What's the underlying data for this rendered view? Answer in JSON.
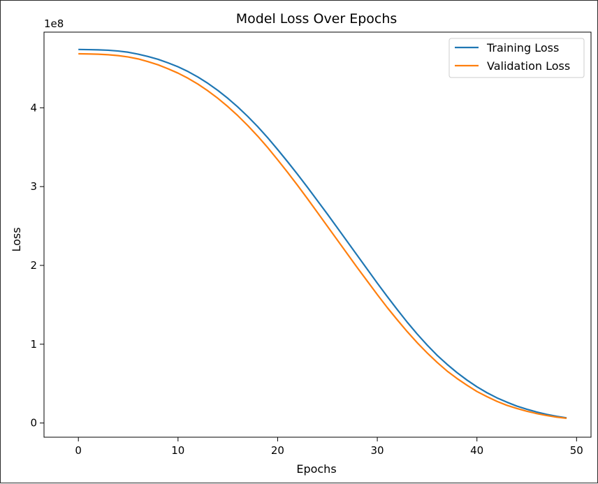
{
  "chart_data": {
    "type": "line",
    "title": "Model Loss Over Epochs",
    "xlabel": "Epochs",
    "ylabel": "Loss",
    "y_multiplier_label": "1e8",
    "y_multiplier": 100000000,
    "xlim": [
      -3.45,
      51.45
    ],
    "ylim": [
      -0.18,
      4.96
    ],
    "x_ticks": [
      0,
      10,
      20,
      30,
      40,
      50
    ],
    "y_ticks": [
      0,
      1,
      2,
      3,
      4
    ],
    "grid": false,
    "legend_position": "upper-right",
    "x": [
      0,
      1,
      2,
      3,
      4,
      5,
      6,
      7,
      8,
      9,
      10,
      11,
      12,
      13,
      14,
      15,
      16,
      17,
      18,
      19,
      20,
      21,
      22,
      23,
      24,
      25,
      26,
      27,
      28,
      29,
      30,
      31,
      32,
      33,
      34,
      35,
      36,
      37,
      38,
      39,
      40,
      41,
      42,
      43,
      44,
      45,
      46,
      47,
      48,
      49
    ],
    "series": [
      {
        "name": "Training Loss",
        "color": "#1f77b4",
        "values": [
          4.74,
          4.738,
          4.735,
          4.73,
          4.72,
          4.705,
          4.68,
          4.65,
          4.615,
          4.57,
          4.52,
          4.46,
          4.39,
          4.31,
          4.22,
          4.12,
          4.01,
          3.89,
          3.76,
          3.62,
          3.47,
          3.315,
          3.155,
          2.99,
          2.82,
          2.65,
          2.475,
          2.3,
          2.125,
          1.95,
          1.775,
          1.605,
          1.44,
          1.28,
          1.13,
          0.99,
          0.86,
          0.745,
          0.64,
          0.545,
          0.46,
          0.385,
          0.32,
          0.265,
          0.215,
          0.175,
          0.14,
          0.11,
          0.085,
          0.065
        ]
      },
      {
        "name": "Validation Loss",
        "color": "#ff7f0e",
        "values": [
          4.685,
          4.683,
          4.68,
          4.673,
          4.662,
          4.645,
          4.62,
          4.585,
          4.545,
          4.495,
          4.44,
          4.375,
          4.3,
          4.215,
          4.12,
          4.015,
          3.9,
          3.775,
          3.64,
          3.495,
          3.34,
          3.18,
          3.015,
          2.845,
          2.67,
          2.495,
          2.32,
          2.145,
          1.97,
          1.8,
          1.63,
          1.465,
          1.31,
          1.16,
          1.02,
          0.89,
          0.77,
          0.66,
          0.565,
          0.48,
          0.4,
          0.335,
          0.275,
          0.225,
          0.185,
          0.15,
          0.12,
          0.095,
          0.075,
          0.06
        ]
      }
    ]
  }
}
